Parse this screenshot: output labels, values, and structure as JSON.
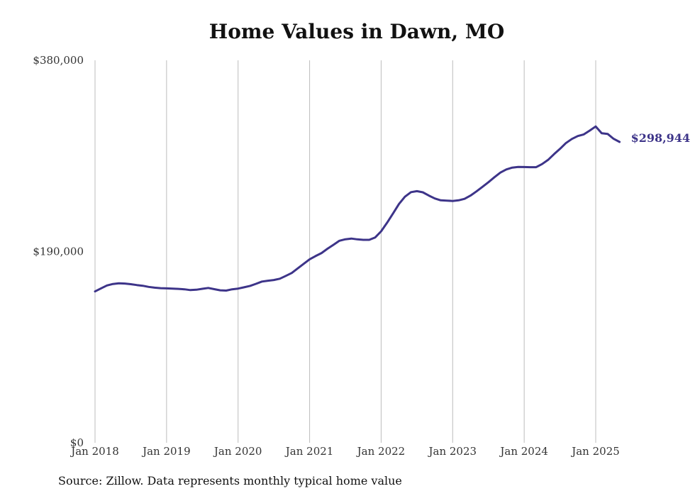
{
  "chart_data": {
    "type": "line",
    "title": "Home Values in Dawn, MO",
    "source": "Source: Zillow. Data represents monthly typical home value",
    "y_range": [
      0,
      380000
    ],
    "y_ticks": [
      {
        "value": 0,
        "label": "$0"
      },
      {
        "value": 190000,
        "label": "$190,000"
      },
      {
        "value": 380000,
        "label": "$380,000"
      }
    ],
    "x_ticks": [
      {
        "value": 2018,
        "label": "Jan 2018"
      },
      {
        "value": 2019,
        "label": "Jan 2019"
      },
      {
        "value": 2020,
        "label": "Jan 2020"
      },
      {
        "value": 2021,
        "label": "Jan 2021"
      },
      {
        "value": 2022,
        "label": "Jan 2022"
      },
      {
        "value": 2023,
        "label": "Jan 2023"
      },
      {
        "value": 2024,
        "label": "Jan 2024"
      },
      {
        "value": 2025,
        "label": "Jan 2025"
      }
    ],
    "vertical_grid": true,
    "line_color": "#3d3489",
    "end_label": "$298,944",
    "series": [
      {
        "points": [
          [
            2018.0,
            150400
          ],
          [
            2018.083,
            153400
          ],
          [
            2018.167,
            156300
          ],
          [
            2018.25,
            157800
          ],
          [
            2018.333,
            158500
          ],
          [
            2018.417,
            158200
          ],
          [
            2018.5,
            157600
          ],
          [
            2018.583,
            156700
          ],
          [
            2018.667,
            156000
          ],
          [
            2018.75,
            154900
          ],
          [
            2018.833,
            154100
          ],
          [
            2018.917,
            153600
          ],
          [
            2019.0,
            153400
          ],
          [
            2019.083,
            153200
          ],
          [
            2019.167,
            152900
          ],
          [
            2019.25,
            152500
          ],
          [
            2019.333,
            151700
          ],
          [
            2019.417,
            152100
          ],
          [
            2019.5,
            153000
          ],
          [
            2019.583,
            153800
          ],
          [
            2019.667,
            152600
          ],
          [
            2019.75,
            151500
          ],
          [
            2019.833,
            151200
          ],
          [
            2019.917,
            152500
          ],
          [
            2020.0,
            153200
          ],
          [
            2020.083,
            154500
          ],
          [
            2020.167,
            155900
          ],
          [
            2020.25,
            157900
          ],
          [
            2020.333,
            160200
          ],
          [
            2020.417,
            161000
          ],
          [
            2020.5,
            161700
          ],
          [
            2020.583,
            163000
          ],
          [
            2020.667,
            165800
          ],
          [
            2020.75,
            168700
          ],
          [
            2020.833,
            173200
          ],
          [
            2020.917,
            177800
          ],
          [
            2021.0,
            182300
          ],
          [
            2021.083,
            185500
          ],
          [
            2021.167,
            188500
          ],
          [
            2021.25,
            192800
          ],
          [
            2021.333,
            196700
          ],
          [
            2021.417,
            200700
          ],
          [
            2021.5,
            202200
          ],
          [
            2021.583,
            202900
          ],
          [
            2021.667,
            202100
          ],
          [
            2021.75,
            201600
          ],
          [
            2021.833,
            201600
          ],
          [
            2021.917,
            204000
          ],
          [
            2022.0,
            210100
          ],
          [
            2022.083,
            218600
          ],
          [
            2022.167,
            227900
          ],
          [
            2022.25,
            237300
          ],
          [
            2022.333,
            244500
          ],
          [
            2022.417,
            249000
          ],
          [
            2022.5,
            250000
          ],
          [
            2022.583,
            248900
          ],
          [
            2022.667,
            245600
          ],
          [
            2022.75,
            242700
          ],
          [
            2022.833,
            240900
          ],
          [
            2022.917,
            240600
          ],
          [
            2023.0,
            240300
          ],
          [
            2023.083,
            240900
          ],
          [
            2023.167,
            242400
          ],
          [
            2023.25,
            245600
          ],
          [
            2023.333,
            249800
          ],
          [
            2023.417,
            254300
          ],
          [
            2023.5,
            258900
          ],
          [
            2023.583,
            263800
          ],
          [
            2023.667,
            268500
          ],
          [
            2023.75,
            271600
          ],
          [
            2023.833,
            273400
          ],
          [
            2023.917,
            274100
          ],
          [
            2024.0,
            274000
          ],
          [
            2024.083,
            273800
          ],
          [
            2024.167,
            273800
          ],
          [
            2024.25,
            276900
          ],
          [
            2024.333,
            281000
          ],
          [
            2024.417,
            286700
          ],
          [
            2024.5,
            292000
          ],
          [
            2024.583,
            297700
          ],
          [
            2024.667,
            301900
          ],
          [
            2024.75,
            304800
          ],
          [
            2024.833,
            306400
          ],
          [
            2024.917,
            310200
          ],
          [
            2025.0,
            314300
          ],
          [
            2025.083,
            307600
          ],
          [
            2025.167,
            306900
          ],
          [
            2025.25,
            302000
          ],
          [
            2025.333,
            298944
          ]
        ]
      }
    ]
  }
}
